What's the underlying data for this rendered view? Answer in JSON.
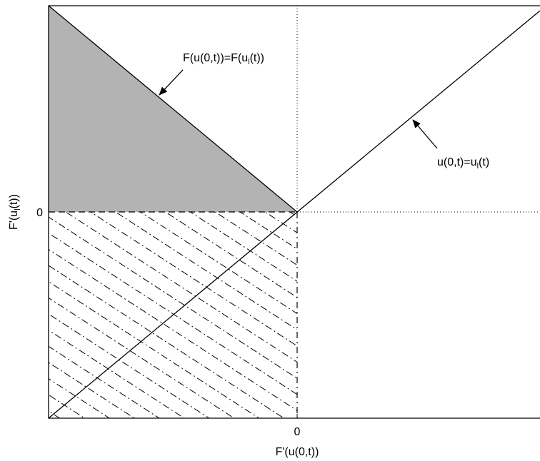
{
  "diagram": {
    "annotations": [
      {
        "parts": [
          "F(u(0,t))=F(u",
          "l",
          "(t))"
        ]
      },
      {
        "parts": [
          "u(0,t)=u",
          "l",
          "(t)"
        ]
      }
    ],
    "x_axis": {
      "label": "F'(u(0,t))",
      "tick": "0"
    },
    "y_axis": {
      "label_parts": [
        "F'(u",
        "l",
        "(t))"
      ],
      "tick": "0"
    }
  }
}
